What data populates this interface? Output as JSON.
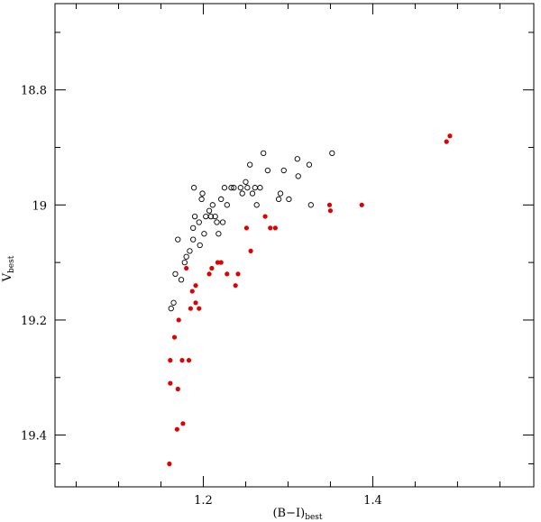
{
  "chart_data": {
    "type": "scatter",
    "title": "",
    "xlabel": "(B−I)",
    "xlabel_sub": "best",
    "ylabel": "V",
    "ylabel_sub": "best",
    "xlim": [
      1.025,
      1.59
    ],
    "ylim": [
      19.49,
      18.65
    ],
    "y_inverted": true,
    "grid": false,
    "x_ticks_major": [
      1.2,
      1.4
    ],
    "x_ticks_minor": [
      1.05,
      1.1,
      1.15,
      1.25,
      1.3,
      1.35,
      1.45,
      1.5,
      1.55
    ],
    "y_ticks_major": [
      18.8,
      19.0,
      19.2,
      19.4
    ],
    "y_ticks_minor": [
      18.7,
      18.9,
      19.1,
      19.3,
      19.45
    ],
    "x_tick_labels": [
      "1.2",
      "1.4"
    ],
    "y_tick_labels": [
      "18.8",
      "19",
      "19.2",
      "19.4"
    ],
    "series": [
      {
        "marker": "open-circle",
        "color": "#000000",
        "points": [
          [
            1.162,
            19.18
          ],
          [
            1.165,
            19.17
          ],
          [
            1.167,
            19.12
          ],
          [
            1.17,
            19.06
          ],
          [
            1.174,
            19.13
          ],
          [
            1.178,
            19.1
          ],
          [
            1.18,
            19.09
          ],
          [
            1.184,
            19.08
          ],
          [
            1.188,
            19.06
          ],
          [
            1.188,
            19.04
          ],
          [
            1.19,
            19.02
          ],
          [
            1.189,
            18.97
          ],
          [
            1.195,
            19.03
          ],
          [
            1.196,
            19.07
          ],
          [
            1.198,
            18.99
          ],
          [
            1.199,
            18.98
          ],
          [
            1.201,
            19.05
          ],
          [
            1.203,
            19.02
          ],
          [
            1.207,
            19.01
          ],
          [
            1.209,
            19.02
          ],
          [
            1.211,
            19.0
          ],
          [
            1.214,
            19.02
          ],
          [
            1.216,
            19.03
          ],
          [
            1.218,
            19.05
          ],
          [
            1.221,
            18.99
          ],
          [
            1.223,
            19.03
          ],
          [
            1.225,
            18.97
          ],
          [
            1.228,
            19.0
          ],
          [
            1.233,
            18.97
          ],
          [
            1.236,
            18.97
          ],
          [
            1.244,
            18.97
          ],
          [
            1.246,
            18.98
          ],
          [
            1.25,
            18.96
          ],
          [
            1.252,
            18.97
          ],
          [
            1.255,
            18.93
          ],
          [
            1.258,
            18.98
          ],
          [
            1.261,
            18.97
          ],
          [
            1.263,
            19.0
          ],
          [
            1.267,
            18.97
          ],
          [
            1.271,
            18.91
          ],
          [
            1.276,
            18.94
          ],
          [
            1.289,
            18.99
          ],
          [
            1.291,
            18.98
          ],
          [
            1.295,
            18.94
          ],
          [
            1.301,
            18.99
          ],
          [
            1.311,
            18.92
          ],
          [
            1.312,
            18.95
          ],
          [
            1.325,
            18.93
          ],
          [
            1.327,
            19.0
          ],
          [
            1.352,
            18.91
          ]
        ]
      },
      {
        "marker": "filled-circle",
        "color": "#e00000",
        "points": [
          [
            1.16,
            19.45
          ],
          [
            1.161,
            19.31
          ],
          [
            1.161,
            19.27
          ],
          [
            1.166,
            19.23
          ],
          [
            1.169,
            19.39
          ],
          [
            1.17,
            19.32
          ],
          [
            1.171,
            19.2
          ],
          [
            1.175,
            19.27
          ],
          [
            1.176,
            19.38
          ],
          [
            1.18,
            19.11
          ],
          [
            1.183,
            19.27
          ],
          [
            1.185,
            19.18
          ],
          [
            1.187,
            19.15
          ],
          [
            1.191,
            19.14
          ],
          [
            1.191,
            19.17
          ],
          [
            1.195,
            19.18
          ],
          [
            1.207,
            19.12
          ],
          [
            1.21,
            19.11
          ],
          [
            1.217,
            19.1
          ],
          [
            1.221,
            19.1
          ],
          [
            1.228,
            19.12
          ],
          [
            1.238,
            19.14
          ],
          [
            1.241,
            19.12
          ],
          [
            1.251,
            19.04
          ],
          [
            1.256,
            19.08
          ],
          [
            1.273,
            19.02
          ],
          [
            1.279,
            19.04
          ],
          [
            1.285,
            19.04
          ],
          [
            1.349,
            19.0
          ],
          [
            1.35,
            19.01
          ],
          [
            1.387,
            19.0
          ],
          [
            1.487,
            18.89
          ],
          [
            1.491,
            18.88
          ]
        ]
      }
    ]
  }
}
